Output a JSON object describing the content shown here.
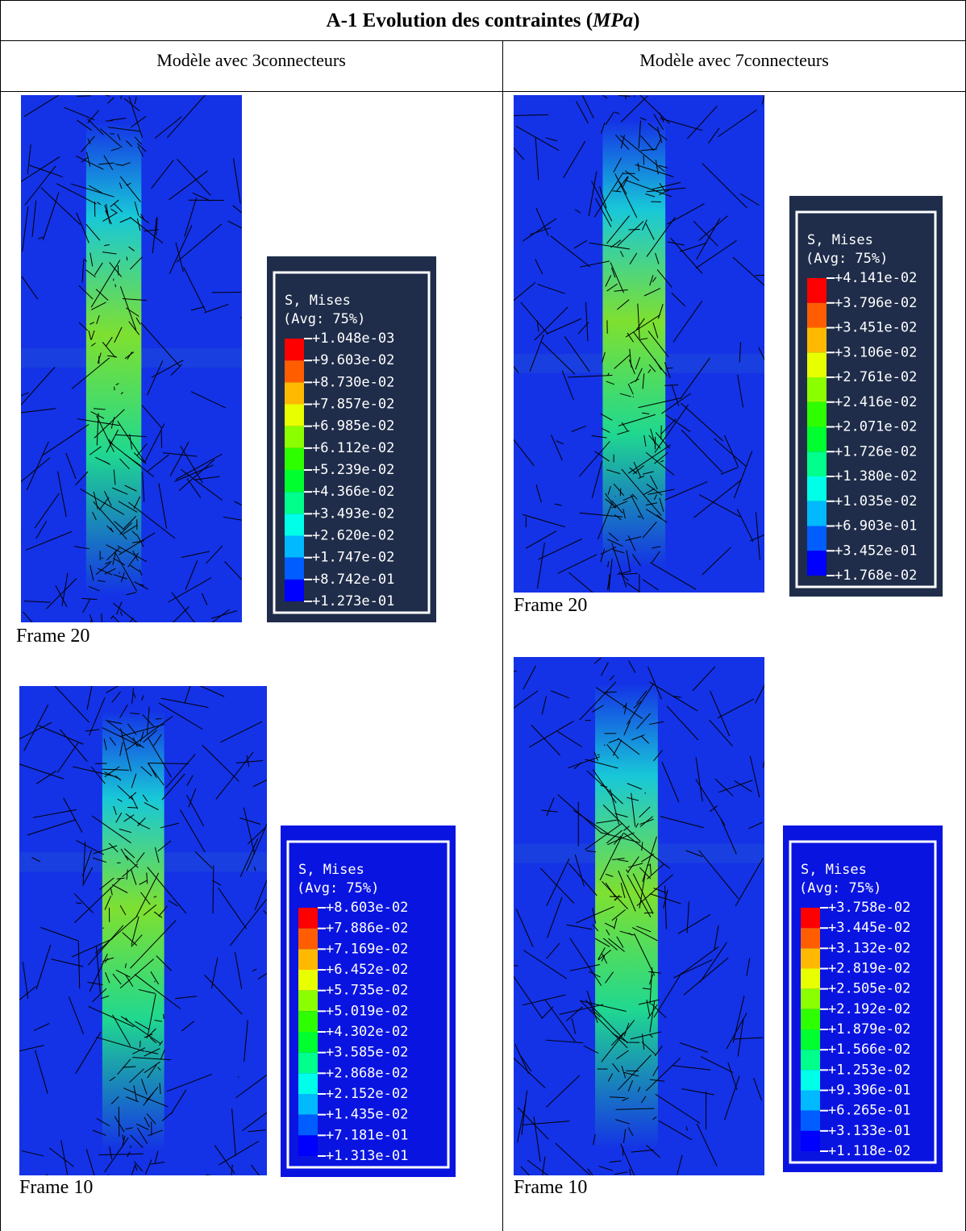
{
  "header": {
    "title_parts": [
      "A-1 Evolution des contraintes (",
      "MPa",
      ")"
    ]
  },
  "columns": [
    "Modèle avec 3connecteurs",
    "Modèle avec 7connecteurs"
  ],
  "panels": [
    {
      "caption": "Frame 20",
      "legend": {
        "title": "S, Mises",
        "avg": "(Avg: 75%)",
        "values": [
          "+1.048e-03",
          "+9.603e-02",
          "+8.730e-02",
          "+7.857e-02",
          "+6.985e-02",
          "+6.112e-02",
          "+5.239e-02",
          "+4.366e-02",
          "+3.493e-02",
          "+2.620e-02",
          "+1.747e-02",
          "+8.742e-01",
          "+1.273e-01"
        ]
      }
    },
    {
      "caption": "Frame 20",
      "legend": {
        "title": "S, Mises",
        "avg": "(Avg: 75%)",
        "values": [
          "+4.141e-02",
          "+3.796e-02",
          "+3.451e-02",
          "+3.106e-02",
          "+2.761e-02",
          "+2.416e-02",
          "+2.071e-02",
          "+1.726e-02",
          "+1.380e-02",
          "+1.035e-02",
          "+6.903e-01",
          "+3.452e-01",
          "+1.768e-02"
        ]
      }
    },
    {
      "caption": "Frame 10",
      "legend": {
        "title": "S, Mises",
        "avg": "(Avg: 75%)",
        "values": [
          "+8.603e-02",
          "+7.886e-02",
          "+7.169e-02",
          "+6.452e-02",
          "+5.735e-02",
          "+5.019e-02",
          "+4.302e-02",
          "+3.585e-02",
          "+2.868e-02",
          "+2.152e-02",
          "+1.435e-02",
          "+7.181e-01",
          "+1.313e-01"
        ]
      }
    },
    {
      "caption": "Frame 10",
      "legend": {
        "title": "S, Mises",
        "avg": "(Avg: 75%)",
        "values": [
          "+3.758e-02",
          "+3.445e-02",
          "+3.132e-02",
          "+2.819e-02",
          "+2.505e-02",
          "+2.192e-02",
          "+1.879e-02",
          "+1.566e-02",
          "+1.253e-02",
          "+9.396e-01",
          "+6.265e-01",
          "+3.133e-01",
          "+1.118e-02"
        ]
      }
    }
  ]
}
